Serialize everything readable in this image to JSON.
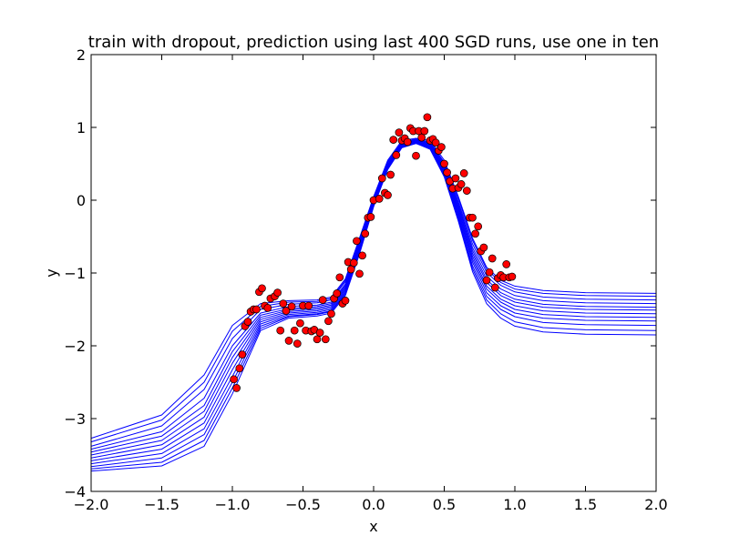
{
  "chart_data": {
    "type": "line",
    "title": "train with dropout, prediction using last 400 SGD runs, use one in ten",
    "xlabel": "x",
    "ylabel": "y",
    "xlim": [
      -2.0,
      2.0
    ],
    "ylim": [
      -4,
      2
    ],
    "x_ticks": [
      -2.0,
      -1.5,
      -1.0,
      -0.5,
      0.0,
      0.5,
      1.0,
      1.5,
      2.0
    ],
    "x_tick_labels": [
      "−2.0",
      "−1.5",
      "−1.0",
      "−0.5",
      "0.0",
      "0.5",
      "1.0",
      "1.5",
      "2.0"
    ],
    "y_ticks": [
      -4,
      -3,
      -2,
      -1,
      0,
      1,
      2
    ],
    "y_tick_labels": [
      "−4",
      "−3",
      "−2",
      "−1",
      "0",
      "1",
      "2"
    ],
    "grid": false,
    "colors": {
      "lines": "#0000ff",
      "points_fill": "#ff0000",
      "points_edge": "#000000"
    },
    "line_series": [
      {
        "x": [
          -2.0,
          -1.5,
          -1.2,
          -1.0,
          -0.8,
          -0.6,
          -0.4,
          -0.3,
          -0.2,
          -0.1,
          0.0,
          0.1,
          0.2,
          0.3,
          0.4,
          0.5,
          0.6,
          0.7,
          0.8,
          0.9,
          1.0,
          1.2,
          1.5,
          2.0
        ],
        "y": [
          -3.27,
          -2.95,
          -2.4,
          -1.72,
          -1.42,
          -1.38,
          -1.37,
          -1.33,
          -1.08,
          -0.52,
          0.05,
          0.55,
          0.82,
          0.85,
          0.82,
          0.55,
          0.05,
          -0.52,
          -0.92,
          -1.1,
          -1.18,
          -1.24,
          -1.27,
          -1.28
        ]
      },
      {
        "x": [
          -2.0,
          -1.5,
          -1.2,
          -1.0,
          -0.8,
          -0.6,
          -0.4,
          -0.3,
          -0.2,
          -0.1,
          0.0,
          0.1,
          0.2,
          0.3,
          0.4,
          0.5,
          0.6,
          0.7,
          0.8,
          0.9,
          1.0,
          1.2,
          1.5,
          2.0
        ],
        "y": [
          -3.32,
          -3.02,
          -2.5,
          -1.8,
          -1.46,
          -1.4,
          -1.39,
          -1.35,
          -1.1,
          -0.54,
          0.03,
          0.53,
          0.8,
          0.84,
          0.8,
          0.52,
          0.02,
          -0.55,
          -0.95,
          -1.13,
          -1.22,
          -1.28,
          -1.31,
          -1.32
        ]
      },
      {
        "x": [
          -2.0,
          -1.5,
          -1.2,
          -1.0,
          -0.8,
          -0.6,
          -0.4,
          -0.3,
          -0.2,
          -0.1,
          0.0,
          0.1,
          0.2,
          0.3,
          0.4,
          0.5,
          0.6,
          0.7,
          0.8,
          0.9,
          1.0,
          1.2,
          1.5,
          2.0
        ],
        "y": [
          -3.38,
          -3.1,
          -2.6,
          -1.9,
          -1.5,
          -1.43,
          -1.41,
          -1.37,
          -1.12,
          -0.56,
          0.02,
          0.52,
          0.79,
          0.83,
          0.79,
          0.5,
          -0.02,
          -0.6,
          -0.99,
          -1.17,
          -1.26,
          -1.33,
          -1.36,
          -1.37
        ]
      },
      {
        "x": [
          -2.0,
          -1.5,
          -1.2,
          -1.0,
          -0.8,
          -0.6,
          -0.4,
          -0.3,
          -0.2,
          -0.1,
          0.0,
          0.1,
          0.2,
          0.3,
          0.4,
          0.5,
          0.6,
          0.7,
          0.8,
          0.9,
          1.0,
          1.2,
          1.5,
          2.0
        ],
        "y": [
          -3.42,
          -3.18,
          -2.72,
          -2.0,
          -1.55,
          -1.46,
          -1.44,
          -1.4,
          -1.15,
          -0.58,
          0.0,
          0.5,
          0.78,
          0.82,
          0.78,
          0.48,
          -0.05,
          -0.65,
          -1.04,
          -1.22,
          -1.31,
          -1.38,
          -1.41,
          -1.42
        ]
      },
      {
        "x": [
          -2.0,
          -1.5,
          -1.2,
          -1.0,
          -0.8,
          -0.6,
          -0.4,
          -0.3,
          -0.2,
          -0.1,
          0.0,
          0.1,
          0.2,
          0.3,
          0.4,
          0.5,
          0.6,
          0.7,
          0.8,
          0.9,
          1.0,
          1.2,
          1.5,
          2.0
        ],
        "y": [
          -3.46,
          -3.24,
          -2.82,
          -2.08,
          -1.58,
          -1.49,
          -1.46,
          -1.42,
          -1.17,
          -0.6,
          -0.01,
          0.49,
          0.77,
          0.82,
          0.77,
          0.46,
          -0.08,
          -0.69,
          -1.09,
          -1.27,
          -1.36,
          -1.43,
          -1.46,
          -1.47
        ]
      },
      {
        "x": [
          -2.0,
          -1.5,
          -1.2,
          -1.0,
          -0.8,
          -0.6,
          -0.4,
          -0.3,
          -0.2,
          -0.1,
          0.0,
          0.1,
          0.2,
          0.3,
          0.4,
          0.5,
          0.6,
          0.7,
          0.8,
          0.9,
          1.0,
          1.2,
          1.5,
          2.0
        ],
        "y": [
          -3.5,
          -3.3,
          -2.9,
          -2.16,
          -1.61,
          -1.51,
          -1.48,
          -1.44,
          -1.19,
          -0.62,
          -0.02,
          0.48,
          0.77,
          0.81,
          0.76,
          0.44,
          -0.11,
          -0.73,
          -1.13,
          -1.31,
          -1.4,
          -1.47,
          -1.5,
          -1.51
        ]
      },
      {
        "x": [
          -2.0,
          -1.5,
          -1.2,
          -1.0,
          -0.8,
          -0.6,
          -0.4,
          -0.3,
          -0.2,
          -0.1,
          0.0,
          0.1,
          0.2,
          0.3,
          0.4,
          0.5,
          0.6,
          0.7,
          0.8,
          0.9,
          1.0,
          1.2,
          1.5,
          2.0
        ],
        "y": [
          -3.54,
          -3.36,
          -2.98,
          -2.24,
          -1.64,
          -1.53,
          -1.5,
          -1.46,
          -1.21,
          -0.64,
          -0.04,
          0.47,
          0.76,
          0.81,
          0.75,
          0.42,
          -0.14,
          -0.77,
          -1.18,
          -1.36,
          -1.45,
          -1.52,
          -1.55,
          -1.56
        ]
      },
      {
        "x": [
          -2.0,
          -1.5,
          -1.2,
          -1.0,
          -0.8,
          -0.6,
          -0.4,
          -0.3,
          -0.2,
          -0.1,
          0.0,
          0.1,
          0.2,
          0.3,
          0.4,
          0.5,
          0.6,
          0.7,
          0.8,
          0.9,
          1.0,
          1.2,
          1.5,
          2.0
        ],
        "y": [
          -3.58,
          -3.42,
          -3.06,
          -2.33,
          -1.67,
          -1.55,
          -1.52,
          -1.48,
          -1.23,
          -0.66,
          -0.05,
          0.46,
          0.75,
          0.8,
          0.74,
          0.4,
          -0.17,
          -0.81,
          -1.22,
          -1.4,
          -1.5,
          -1.57,
          -1.6,
          -1.61
        ]
      },
      {
        "x": [
          -2.0,
          -1.5,
          -1.2,
          -1.0,
          -0.8,
          -0.6,
          -0.4,
          -0.3,
          -0.2,
          -0.1,
          0.0,
          0.1,
          0.2,
          0.3,
          0.4,
          0.5,
          0.6,
          0.7,
          0.8,
          0.9,
          1.0,
          1.2,
          1.5,
          2.0
        ],
        "y": [
          -3.62,
          -3.48,
          -3.14,
          -2.42,
          -1.7,
          -1.57,
          -1.54,
          -1.5,
          -1.25,
          -0.68,
          -0.06,
          0.45,
          0.74,
          0.79,
          0.73,
          0.38,
          -0.2,
          -0.85,
          -1.27,
          -1.45,
          -1.55,
          -1.62,
          -1.65,
          -1.66
        ]
      },
      {
        "x": [
          -2.0,
          -1.5,
          -1.2,
          -1.0,
          -0.8,
          -0.6,
          -0.4,
          -0.3,
          -0.2,
          -0.1,
          0.0,
          0.1,
          0.2,
          0.3,
          0.4,
          0.5,
          0.6,
          0.7,
          0.8,
          0.9,
          1.0,
          1.2,
          1.5,
          2.0
        ],
        "y": [
          -3.66,
          -3.54,
          -3.22,
          -2.5,
          -1.73,
          -1.59,
          -1.56,
          -1.52,
          -1.27,
          -0.7,
          -0.07,
          0.44,
          0.74,
          0.79,
          0.72,
          0.36,
          -0.23,
          -0.9,
          -1.32,
          -1.5,
          -1.6,
          -1.68,
          -1.71,
          -1.72
        ]
      },
      {
        "x": [
          -2.0,
          -1.5,
          -1.2,
          -1.0,
          -0.8,
          -0.6,
          -0.4,
          -0.3,
          -0.2,
          -0.1,
          0.0,
          0.1,
          0.2,
          0.3,
          0.4,
          0.5,
          0.6,
          0.7,
          0.8,
          0.9,
          1.0,
          1.2,
          1.5,
          2.0
        ],
        "y": [
          -3.69,
          -3.6,
          -3.3,
          -2.58,
          -1.76,
          -1.6,
          -1.57,
          -1.53,
          -1.29,
          -0.72,
          -0.08,
          0.43,
          0.73,
          0.78,
          0.71,
          0.34,
          -0.26,
          -0.94,
          -1.37,
          -1.56,
          -1.67,
          -1.75,
          -1.78,
          -1.79
        ]
      },
      {
        "x": [
          -2.0,
          -1.5,
          -1.2,
          -1.0,
          -0.8,
          -0.6,
          -0.4,
          -0.3,
          -0.2,
          -0.1,
          0.0,
          0.1,
          0.2,
          0.3,
          0.4,
          0.5,
          0.6,
          0.7,
          0.8,
          0.9,
          1.0,
          1.2,
          1.5,
          2.0
        ],
        "y": [
          -3.72,
          -3.65,
          -3.38,
          -2.66,
          -1.79,
          -1.62,
          -1.59,
          -1.55,
          -1.31,
          -0.74,
          -0.09,
          0.42,
          0.72,
          0.78,
          0.7,
          0.32,
          -0.29,
          -0.98,
          -1.42,
          -1.62,
          -1.73,
          -1.81,
          -1.84,
          -1.85
        ]
      }
    ],
    "points": [
      {
        "x": -0.99,
        "y": -2.46
      },
      {
        "x": -0.97,
        "y": -2.58
      },
      {
        "x": -0.95,
        "y": -2.31
      },
      {
        "x": -0.93,
        "y": -2.12
      },
      {
        "x": -0.91,
        "y": -1.73
      },
      {
        "x": -0.89,
        "y": -1.67
      },
      {
        "x": -0.87,
        "y": -1.53
      },
      {
        "x": -0.85,
        "y": -1.5
      },
      {
        "x": -0.83,
        "y": -1.5
      },
      {
        "x": -0.81,
        "y": -1.26
      },
      {
        "x": -0.79,
        "y": -1.21
      },
      {
        "x": -0.77,
        "y": -1.45
      },
      {
        "x": -0.75,
        "y": -1.48
      },
      {
        "x": -0.73,
        "y": -1.35
      },
      {
        "x": -0.7,
        "y": -1.32
      },
      {
        "x": -0.68,
        "y": -1.27
      },
      {
        "x": -0.66,
        "y": -1.79
      },
      {
        "x": -0.64,
        "y": -1.42
      },
      {
        "x": -0.62,
        "y": -1.52
      },
      {
        "x": -0.6,
        "y": -1.93
      },
      {
        "x": -0.58,
        "y": -1.46
      },
      {
        "x": -0.56,
        "y": -1.79
      },
      {
        "x": -0.54,
        "y": -1.97
      },
      {
        "x": -0.52,
        "y": -1.69
      },
      {
        "x": -0.5,
        "y": -1.45
      },
      {
        "x": -0.48,
        "y": -1.79
      },
      {
        "x": -0.46,
        "y": -1.45
      },
      {
        "x": -0.44,
        "y": -1.8
      },
      {
        "x": -0.42,
        "y": -1.78
      },
      {
        "x": -0.4,
        "y": -1.91
      },
      {
        "x": -0.38,
        "y": -1.82
      },
      {
        "x": -0.36,
        "y": -1.37
      },
      {
        "x": -0.34,
        "y": -1.91
      },
      {
        "x": -0.32,
        "y": -1.66
      },
      {
        "x": -0.3,
        "y": -1.56
      },
      {
        "x": -0.28,
        "y": -1.35
      },
      {
        "x": -0.26,
        "y": -1.28
      },
      {
        "x": -0.24,
        "y": -1.06
      },
      {
        "x": -0.22,
        "y": -1.42
      },
      {
        "x": -0.2,
        "y": -1.38
      },
      {
        "x": -0.18,
        "y": -0.85
      },
      {
        "x": -0.16,
        "y": -0.95
      },
      {
        "x": -0.14,
        "y": -0.86
      },
      {
        "x": -0.12,
        "y": -0.56
      },
      {
        "x": -0.1,
        "y": -1.01
      },
      {
        "x": -0.08,
        "y": -0.76
      },
      {
        "x": -0.06,
        "y": -0.46
      },
      {
        "x": -0.04,
        "y": -0.24
      },
      {
        "x": -0.02,
        "y": -0.23
      },
      {
        "x": 0.0,
        "y": 0.0
      },
      {
        "x": 0.04,
        "y": 0.02
      },
      {
        "x": 0.06,
        "y": 0.3
      },
      {
        "x": 0.08,
        "y": 0.1
      },
      {
        "x": 0.1,
        "y": 0.07
      },
      {
        "x": 0.12,
        "y": 0.35
      },
      {
        "x": 0.14,
        "y": 0.83
      },
      {
        "x": 0.16,
        "y": 0.62
      },
      {
        "x": 0.18,
        "y": 0.93
      },
      {
        "x": 0.2,
        "y": 0.82
      },
      {
        "x": 0.22,
        "y": 0.85
      },
      {
        "x": 0.24,
        "y": 0.8
      },
      {
        "x": 0.26,
        "y": 0.99
      },
      {
        "x": 0.28,
        "y": 0.95
      },
      {
        "x": 0.3,
        "y": 0.61
      },
      {
        "x": 0.32,
        "y": 0.95
      },
      {
        "x": 0.34,
        "y": 0.86
      },
      {
        "x": 0.36,
        "y": 0.95
      },
      {
        "x": 0.38,
        "y": 1.14
      },
      {
        "x": 0.4,
        "y": 0.82
      },
      {
        "x": 0.42,
        "y": 0.84
      },
      {
        "x": 0.44,
        "y": 0.79
      },
      {
        "x": 0.46,
        "y": 0.68
      },
      {
        "x": 0.48,
        "y": 0.73
      },
      {
        "x": 0.5,
        "y": 0.5
      },
      {
        "x": 0.52,
        "y": 0.38
      },
      {
        "x": 0.54,
        "y": 0.26
      },
      {
        "x": 0.56,
        "y": 0.16
      },
      {
        "x": 0.58,
        "y": 0.3
      },
      {
        "x": 0.6,
        "y": 0.17
      },
      {
        "x": 0.62,
        "y": 0.22
      },
      {
        "x": 0.64,
        "y": 0.37
      },
      {
        "x": 0.66,
        "y": 0.13
      },
      {
        "x": 0.68,
        "y": -0.24
      },
      {
        "x": 0.7,
        "y": -0.24
      },
      {
        "x": 0.72,
        "y": -0.46
      },
      {
        "x": 0.74,
        "y": -0.36
      },
      {
        "x": 0.76,
        "y": -0.7
      },
      {
        "x": 0.78,
        "y": -0.65
      },
      {
        "x": 0.8,
        "y": -1.1
      },
      {
        "x": 0.82,
        "y": -0.99
      },
      {
        "x": 0.84,
        "y": -0.8
      },
      {
        "x": 0.86,
        "y": -1.2
      },
      {
        "x": 0.88,
        "y": -1.07
      },
      {
        "x": 0.9,
        "y": -1.03
      },
      {
        "x": 0.92,
        "y": -1.06
      },
      {
        "x": 0.94,
        "y": -0.88
      },
      {
        "x": 0.96,
        "y": -1.06
      },
      {
        "x": 0.98,
        "y": -1.05
      }
    ]
  }
}
